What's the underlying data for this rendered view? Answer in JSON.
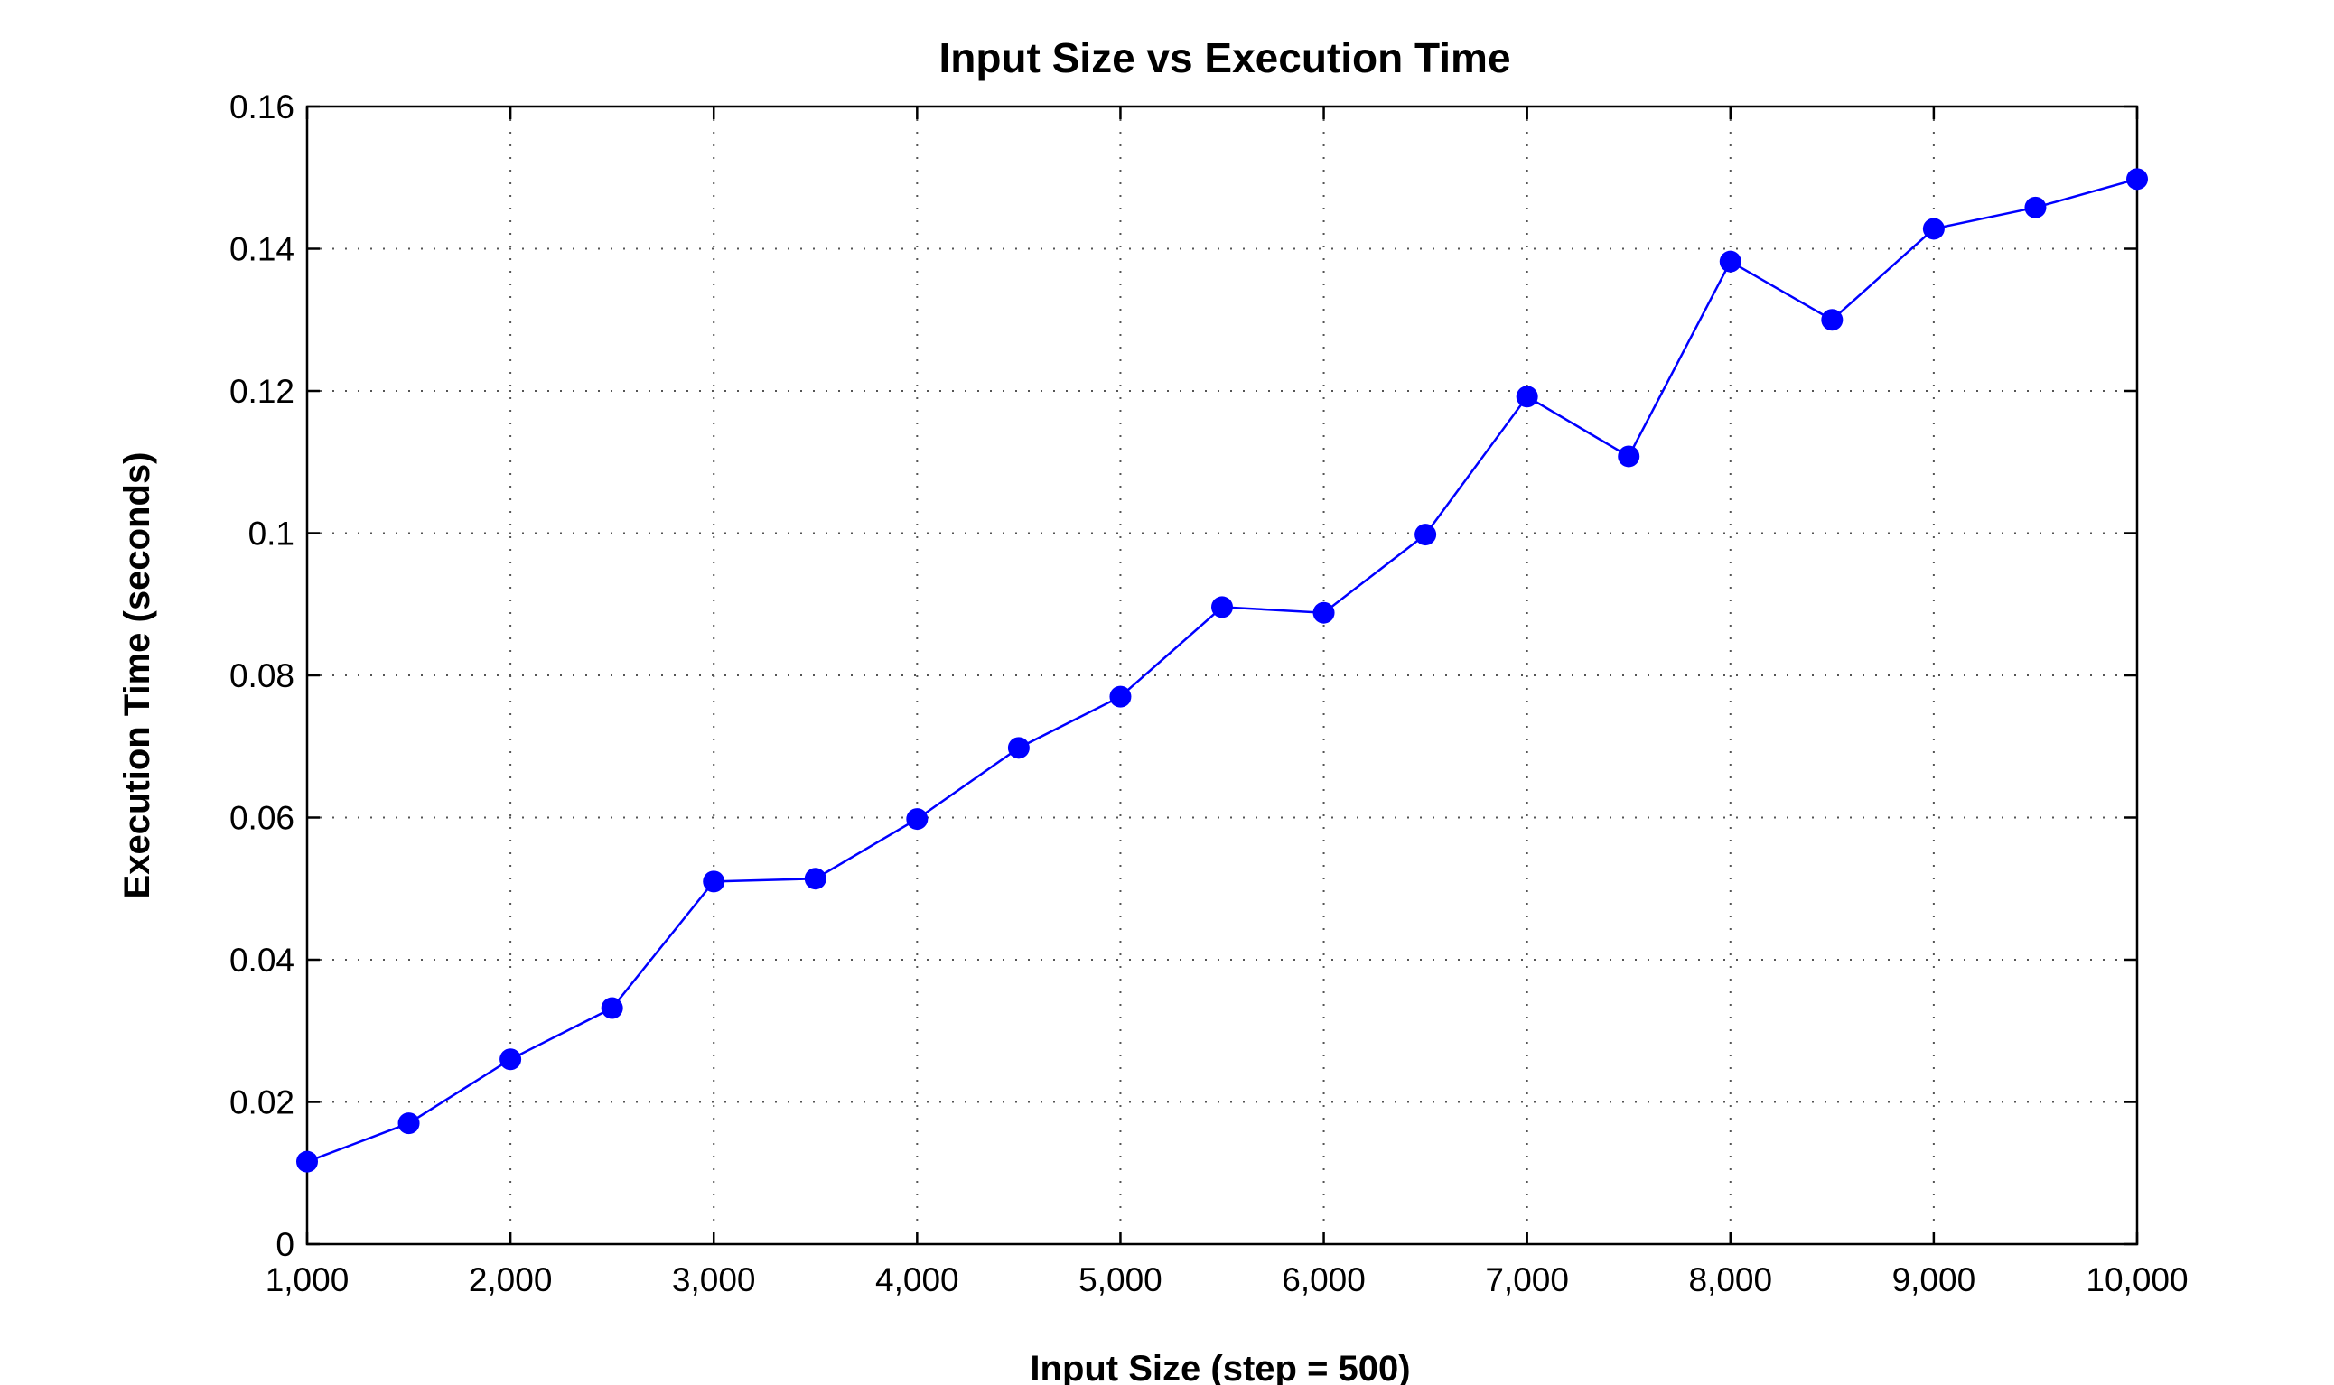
{
  "chart_data": {
    "type": "line",
    "title": "Input Size vs Execution Time",
    "xlabel": "Input Size (step = 500)",
    "ylabel": "Execution Time (seconds)",
    "xlim": [
      1000,
      10000
    ],
    "ylim": [
      0,
      0.16
    ],
    "xticks": [
      1000,
      2000,
      3000,
      4000,
      5000,
      6000,
      7000,
      8000,
      9000,
      10000
    ],
    "xtick_labels": [
      "1,000",
      "2,000",
      "3,000",
      "4,000",
      "5,000",
      "6,000",
      "7,000",
      "8,000",
      "9,000",
      "10,000"
    ],
    "yticks": [
      0,
      0.02,
      0.04,
      0.06,
      0.08,
      0.1,
      0.12,
      0.14,
      0.16
    ],
    "ytick_labels": [
      "0",
      "0.02",
      "0.04",
      "0.06",
      "0.08",
      "0.1",
      "0.12",
      "0.14",
      "0.16"
    ],
    "grid": true,
    "series": [
      {
        "color": "#0000ff",
        "marker": "circle",
        "x": [
          1000,
          1500,
          2000,
          2500,
          3000,
          3500,
          4000,
          4500,
          5000,
          5500,
          6000,
          6500,
          7000,
          7500,
          8000,
          8500,
          9000,
          9500,
          10000
        ],
        "y": [
          0.0116,
          0.017,
          0.026,
          0.0332,
          0.051,
          0.0514,
          0.0598,
          0.0698,
          0.077,
          0.0896,
          0.0888,
          0.0998,
          0.1192,
          0.1108,
          0.1382,
          0.13,
          0.1428,
          0.1458,
          0.1498
        ]
      }
    ]
  }
}
